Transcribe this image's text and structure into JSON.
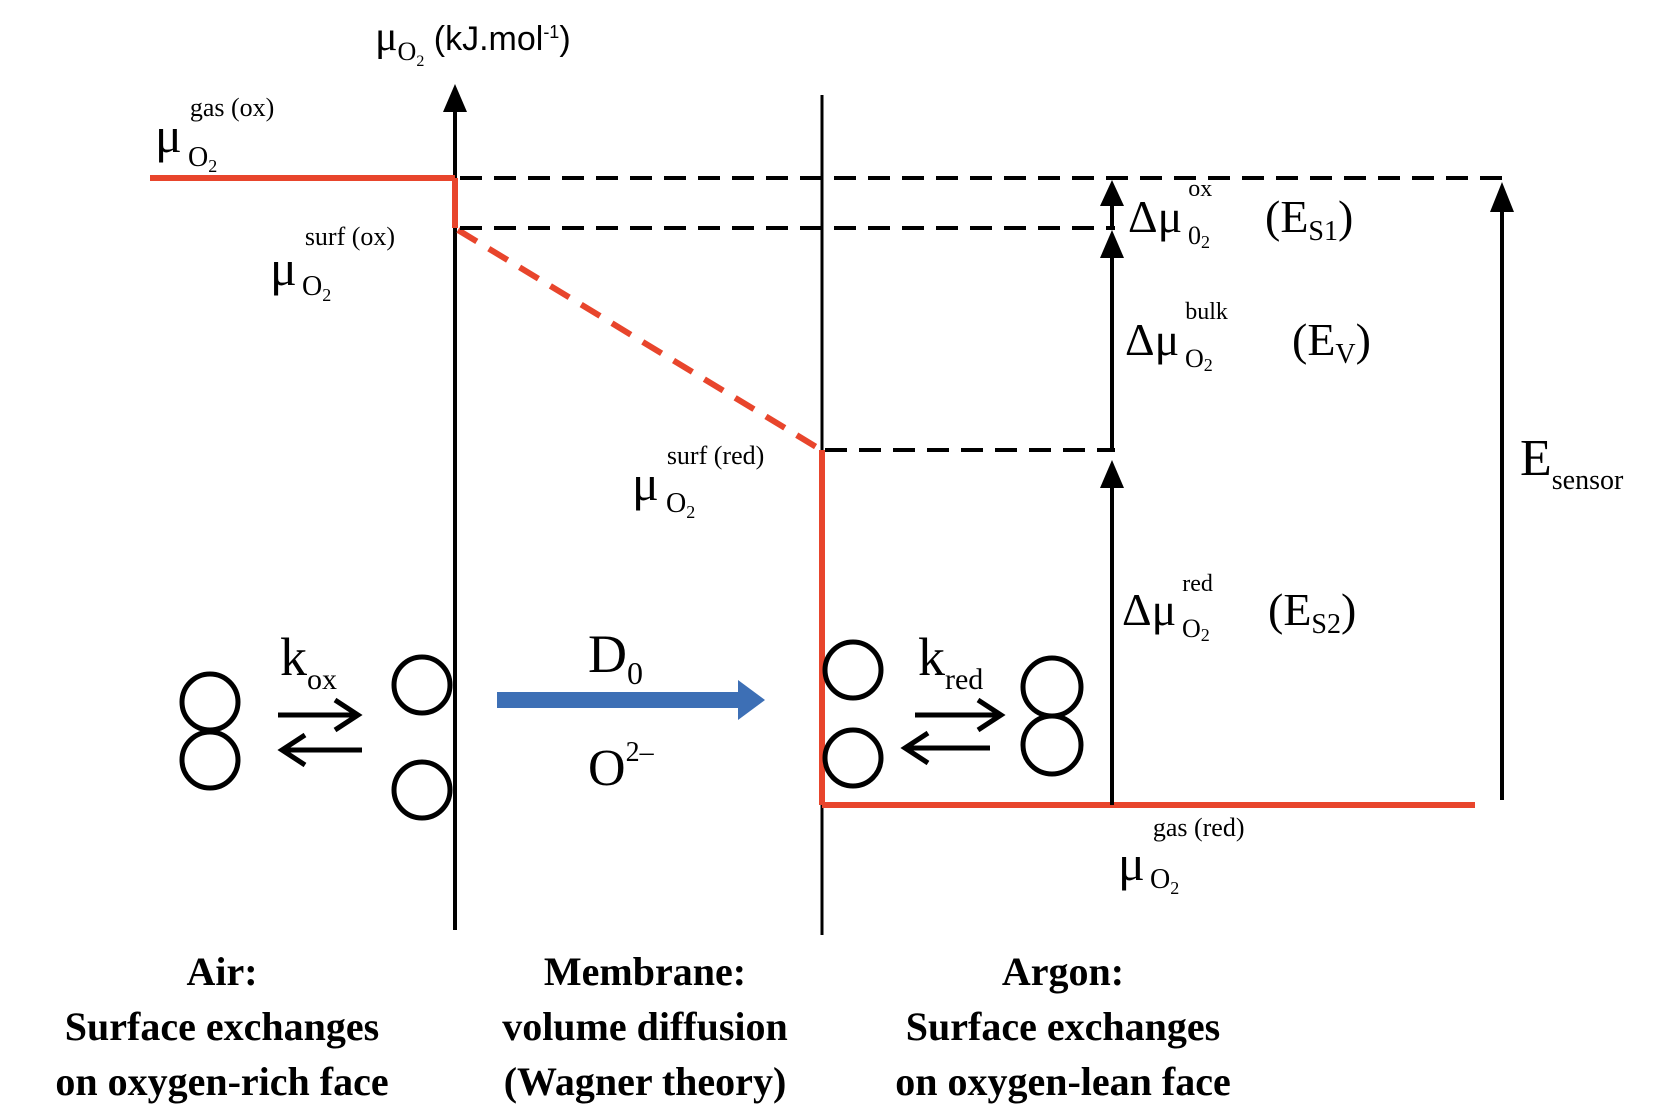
{
  "axis": {
    "mu": "μ",
    "sub": "O",
    "sub2": "2",
    "unit": " (kJ.mol",
    "unit_exp": "-1",
    "unit_close": ")"
  },
  "labels": {
    "mu_gas_ox": {
      "base": "μ",
      "sup": "gas (ox)",
      "sub": "O",
      "sub2": "2"
    },
    "mu_surf_ox": {
      "base": "μ",
      "sup": "surf (ox)",
      "sub": "O",
      "sub2": "2"
    },
    "mu_surf_red": {
      "base": "μ",
      "sup": "surf (red)",
      "sub": "O",
      "sub2": "2"
    },
    "mu_gas_red": {
      "base": "μ",
      "sup": "gas (red)",
      "sub": "O",
      "sub2": "2"
    },
    "d_mu_ox": {
      "base": "Δμ",
      "sup": "ox",
      "sub": "0",
      "sub2": "2",
      "paren": "(E",
      "psub": "S1",
      "pclose": ")"
    },
    "d_mu_bulk": {
      "base": "Δμ",
      "sup": "bulk",
      "sub": "O",
      "sub2": "2",
      "paren": "(E",
      "psub": "V",
      "pclose": ")"
    },
    "d_mu_red": {
      "base": "Δμ",
      "sup": "red",
      "sub": "O",
      "sub2": "2",
      "paren": "(E",
      "psub": "S2",
      "pclose": ")"
    },
    "e_sensor": {
      "base": "E",
      "sub": "sensor"
    },
    "k_ox": {
      "base": "k",
      "sub": "ox"
    },
    "k_red": {
      "base": "k",
      "sub": "red"
    },
    "d_0": {
      "base": "D",
      "sub": "0"
    },
    "o2": {
      "base": "O",
      "sup": "2–"
    }
  },
  "captions": {
    "air": [
      "Air:",
      "Surface exchanges",
      "on oxygen-rich face"
    ],
    "membrane": [
      "Membrane:",
      "volume diffusion",
      "(Wagner theory)"
    ],
    "argon": [
      "Argon:",
      "Surface exchanges",
      "on oxygen-lean face"
    ]
  },
  "colors": {
    "red_line": "#e8452c",
    "blue_arrow": "#3d6fb5",
    "black": "#000000"
  }
}
